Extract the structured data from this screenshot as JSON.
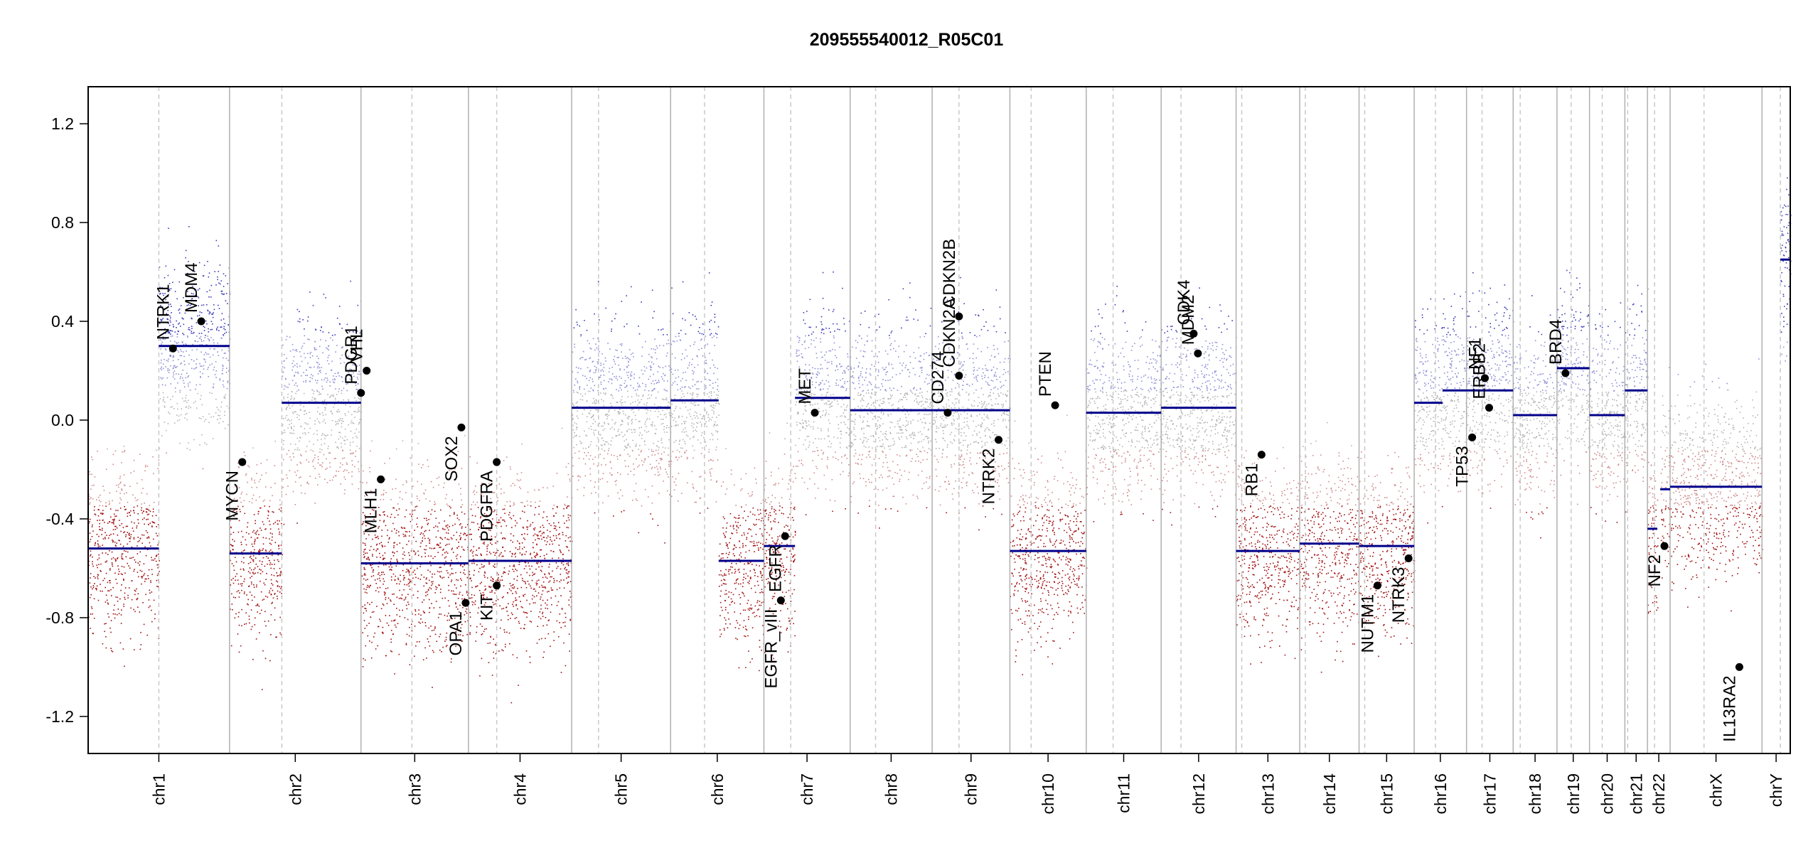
{
  "chart_data": {
    "type": "scatter",
    "title": "209555540012_R05C01",
    "xlabel": "",
    "ylabel": "",
    "ylim": [
      -1.35,
      1.35
    ],
    "yticks": [
      -1.2,
      -0.8,
      -0.4,
      0.0,
      0.4,
      0.8,
      1.2
    ],
    "ytick_labels": [
      "-1.2",
      "-0.8",
      "-0.4",
      "0.0",
      "0.4",
      "0.8",
      "1.2"
    ],
    "grid": false,
    "colors": {
      "gain": "#3a3ab8",
      "loss": "#a01010",
      "neutral": "#b4b4b4",
      "segment": "#00008b",
      "gene": "#000000",
      "boundary": "#b0b0b0",
      "centromere": "#c8c8c8"
    },
    "chromosomes": [
      {
        "name": "chr1",
        "start": 0,
        "end": 1.0,
        "centromere": 0.5,
        "segments": [
          {
            "start": 0,
            "end": 0.5,
            "value": -0.52
          },
          {
            "start": 0.5,
            "end": 1.0,
            "value": 0.3
          }
        ]
      },
      {
        "name": "chr2",
        "start": 1.0,
        "end": 1.93,
        "centromere": 1.37,
        "segments": [
          {
            "start": 1.0,
            "end": 1.37,
            "value": -0.54
          },
          {
            "start": 1.37,
            "end": 1.93,
            "value": 0.07
          }
        ]
      },
      {
        "name": "chr3",
        "start": 1.93,
        "end": 2.69,
        "centromere": 2.29,
        "segments": [
          {
            "start": 1.93,
            "end": 2.69,
            "value": -0.58
          }
        ]
      },
      {
        "name": "chr4",
        "start": 2.69,
        "end": 3.42,
        "centromere": 2.89,
        "segments": [
          {
            "start": 2.69,
            "end": 3.42,
            "value": -0.57
          }
        ]
      },
      {
        "name": "chr5",
        "start": 3.42,
        "end": 4.12,
        "centromere": 3.61,
        "segments": [
          {
            "start": 3.42,
            "end": 4.12,
            "value": 0.05
          }
        ]
      },
      {
        "name": "chr6",
        "start": 4.12,
        "end": 4.78,
        "centromere": 4.36,
        "segments": [
          {
            "start": 4.12,
            "end": 4.46,
            "value": 0.08
          },
          {
            "start": 4.46,
            "end": 4.78,
            "value": -0.57
          }
        ]
      },
      {
        "name": "chr7",
        "start": 4.78,
        "end": 5.39,
        "centromere": 4.97,
        "segments": [
          {
            "start": 4.78,
            "end": 5.0,
            "value": -0.51
          },
          {
            "start": 5.0,
            "end": 5.39,
            "value": 0.09
          }
        ]
      },
      {
        "name": "chr8",
        "start": 5.39,
        "end": 5.97,
        "centromere": 5.57,
        "segments": [
          {
            "start": 5.39,
            "end": 5.97,
            "value": 0.04
          }
        ]
      },
      {
        "name": "chr9",
        "start": 5.97,
        "end": 6.52,
        "centromere": 6.16,
        "segments": [
          {
            "start": 5.97,
            "end": 6.52,
            "value": 0.04
          }
        ]
      },
      {
        "name": "chr10",
        "start": 6.52,
        "end": 7.06,
        "centromere": 6.67,
        "segments": [
          {
            "start": 6.52,
            "end": 7.06,
            "value": -0.53
          }
        ]
      },
      {
        "name": "chr11",
        "start": 7.06,
        "end": 7.59,
        "centromere": 7.25,
        "segments": [
          {
            "start": 7.06,
            "end": 7.59,
            "value": 0.03
          }
        ]
      },
      {
        "name": "chr12",
        "start": 7.59,
        "end": 8.12,
        "centromere": 7.73,
        "segments": [
          {
            "start": 7.59,
            "end": 8.12,
            "value": 0.05
          }
        ]
      },
      {
        "name": "chr13",
        "start": 8.12,
        "end": 8.57,
        "centromere": 8.16,
        "segments": [
          {
            "start": 8.12,
            "end": 8.57,
            "value": -0.53
          }
        ]
      },
      {
        "name": "chr14",
        "start": 8.57,
        "end": 8.99,
        "centromere": 8.61,
        "segments": [
          {
            "start": 8.57,
            "end": 8.99,
            "value": -0.5
          }
        ]
      },
      {
        "name": "chr15",
        "start": 8.99,
        "end": 9.38,
        "centromere": 9.03,
        "segments": [
          {
            "start": 8.99,
            "end": 9.38,
            "value": -0.51
          }
        ]
      },
      {
        "name": "chr16",
        "start": 9.38,
        "end": 9.75,
        "centromere": 9.53,
        "segments": [
          {
            "start": 9.38,
            "end": 9.58,
            "value": 0.07
          },
          {
            "start": 9.58,
            "end": 9.75,
            "value": 0.12
          }
        ]
      },
      {
        "name": "chr17",
        "start": 9.75,
        "end": 10.08,
        "centromere": 9.86,
        "segments": [
          {
            "start": 9.75,
            "end": 10.08,
            "value": 0.12
          }
        ]
      },
      {
        "name": "chr18",
        "start": 10.08,
        "end": 10.39,
        "centromere": 10.13,
        "segments": [
          {
            "start": 10.08,
            "end": 10.39,
            "value": 0.02
          }
        ]
      },
      {
        "name": "chr19",
        "start": 10.39,
        "end": 10.62,
        "centromere": 10.49,
        "segments": [
          {
            "start": 10.39,
            "end": 10.62,
            "value": 0.21
          }
        ]
      },
      {
        "name": "chr20",
        "start": 10.62,
        "end": 10.87,
        "centromere": 10.71,
        "segments": [
          {
            "start": 10.62,
            "end": 10.87,
            "value": 0.02
          }
        ]
      },
      {
        "name": "chr21",
        "start": 10.87,
        "end": 11.03,
        "centromere": 10.89,
        "segments": [
          {
            "start": 10.87,
            "end": 11.03,
            "value": 0.12
          }
        ]
      },
      {
        "name": "chr22",
        "start": 11.03,
        "end": 11.19,
        "centromere": 11.08,
        "segments": [
          {
            "start": 11.03,
            "end": 11.1,
            "value": -0.44
          },
          {
            "start": 11.12,
            "end": 11.19,
            "value": -0.28
          }
        ]
      },
      {
        "name": "chrX",
        "start": 11.19,
        "end": 11.84,
        "centromere": 11.43,
        "segments": [
          {
            "start": 11.19,
            "end": 11.84,
            "value": -0.27
          }
        ]
      },
      {
        "name": "chrY",
        "start": 11.84,
        "end": 12.04,
        "centromere": 11.97,
        "segments": [
          {
            "start": 11.97,
            "end": 12.04,
            "value": 0.65
          }
        ]
      }
    ],
    "genes": [
      {
        "name": "NTRK1",
        "x": 0.6,
        "value": 0.29
      },
      {
        "name": "MDM4",
        "x": 0.8,
        "value": 0.4
      },
      {
        "name": "MYCN",
        "x": 1.09,
        "value": -0.17
      },
      {
        "name": "PDGR1",
        "x": 1.93,
        "value": 0.11
      },
      {
        "name": "VHL",
        "x": 1.97,
        "value": 0.2
      },
      {
        "name": "MLH1",
        "x": 2.07,
        "value": -0.24
      },
      {
        "name": "SOX2",
        "x": 2.64,
        "value": -0.03
      },
      {
        "name": "OPA1",
        "x": 2.67,
        "value": -0.74
      },
      {
        "name": "PDGFRA",
        "x": 2.89,
        "value": -0.17
      },
      {
        "name": "KIT",
        "x": 2.89,
        "value": -0.67
      },
      {
        "name": "EGFR_vIII",
        "x": 4.9,
        "value": -0.73
      },
      {
        "name": "EGFR",
        "x": 4.93,
        "value": -0.47
      },
      {
        "name": "MET",
        "x": 5.14,
        "value": 0.03
      },
      {
        "name": "CD274",
        "x": 6.08,
        "value": 0.03
      },
      {
        "name": "CDKN2A",
        "x": 6.16,
        "value": 0.18
      },
      {
        "name": "CDKN2B",
        "x": 6.16,
        "value": 0.42
      },
      {
        "name": "NTRK2",
        "x": 6.44,
        "value": -0.08
      },
      {
        "name": "PTEN",
        "x": 6.84,
        "value": 0.06
      },
      {
        "name": "CDK4",
        "x": 7.82,
        "value": 0.35
      },
      {
        "name": "MDM2",
        "x": 7.85,
        "value": 0.27
      },
      {
        "name": "RB1",
        "x": 8.3,
        "value": -0.14
      },
      {
        "name": "NUTM1",
        "x": 9.12,
        "value": -0.67
      },
      {
        "name": "NTRK3",
        "x": 9.34,
        "value": -0.56
      },
      {
        "name": "TP53",
        "x": 9.79,
        "value": -0.07
      },
      {
        "name": "NF1",
        "x": 9.88,
        "value": 0.17
      },
      {
        "name": "ERBB2",
        "x": 9.91,
        "value": 0.05
      },
      {
        "name": "BRD4",
        "x": 10.45,
        "value": 0.19
      },
      {
        "name": "NF2",
        "x": 11.15,
        "value": -0.51
      },
      {
        "name": "IL13RA2",
        "x": 11.68,
        "value": -1.0
      }
    ]
  }
}
